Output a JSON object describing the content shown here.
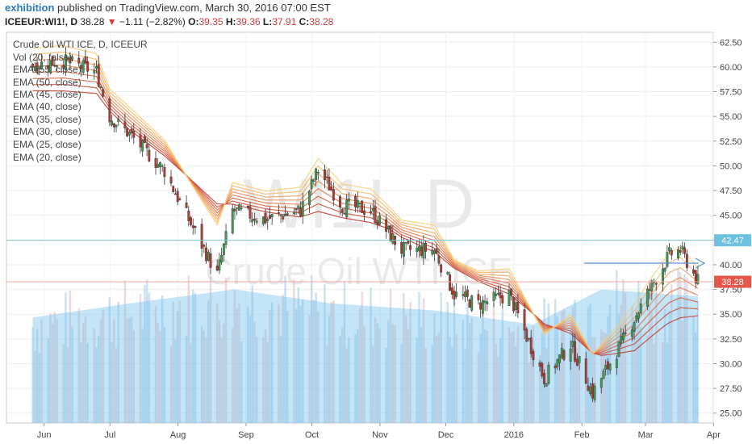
{
  "header": {
    "author": "exhibition",
    "published_text": " published on TradingView.com, March 30, 2016 07:00 EST",
    "symbol": "ICEEUR:WI1!",
    "interval": ", D ",
    "last": "38.28",
    "change": "−1.11 (−2.82%)",
    "o_label": "O:",
    "o_value": "39.35",
    "h_label": "H:",
    "h_value": "39.36",
    "l_label": "L:",
    "l_value": "37.91",
    "c_label": "C:",
    "c_value": "38.28",
    "down_color": "#d23b3b"
  },
  "watermark": {
    "line1": "WI1!, D",
    "line2": "Crude Oil WTI ICE"
  },
  "studies": {
    "title": "Crude Oil WTI ICE, D, ICEEUR",
    "items": [
      "Vol (20, false)",
      "EMA (55, close)",
      "EMA (50, close)",
      "EMA (45, close)",
      "EMA (40, close)",
      "EMA (35, close)",
      "EMA (30, close)",
      "EMA (25, close)",
      "EMA (20, close)"
    ]
  },
  "price_badges": {
    "last": "38.28",
    "marked_level": "42.47",
    "last_color": "#e8564a",
    "marked_color": "#6cc0e0"
  },
  "chart_data": {
    "type": "line",
    "price_axis": [
      "62.50",
      "60.00",
      "57.50",
      "55.00",
      "52.50",
      "50.00",
      "47.50",
      "45.00",
      "42.50",
      "40.00",
      "37.50",
      "35.00",
      "32.50",
      "30.00",
      "27.50",
      "25.00"
    ],
    "ylim": [
      24.0,
      63.5
    ],
    "time_axis": [
      "Jun",
      "Jul",
      "Aug",
      "Sep",
      "Oct",
      "Nov",
      "Dec",
      "2016",
      "Feb",
      "Mar",
      "Apr"
    ],
    "horizontal_level": 42.47,
    "last_price": 38.28,
    "grid": true,
    "price_path": [
      [
        "2015-06-01",
        60.2
      ],
      [
        "2015-06-15",
        60.6
      ],
      [
        "2015-06-30",
        59.5
      ],
      [
        "2015-07-06",
        55.0
      ],
      [
        "2015-07-15",
        53.2
      ],
      [
        "2015-07-31",
        49.5
      ],
      [
        "2015-08-10",
        45.0
      ],
      [
        "2015-08-24",
        39.0
      ],
      [
        "2015-08-31",
        45.5
      ],
      [
        "2015-09-15",
        44.6
      ],
      [
        "2015-10-01",
        45.5
      ],
      [
        "2015-10-09",
        49.6
      ],
      [
        "2015-10-20",
        46.0
      ],
      [
        "2015-11-02",
        45.5
      ],
      [
        "2015-11-16",
        41.5
      ],
      [
        "2015-12-01",
        41.5
      ],
      [
        "2015-12-10",
        37.0
      ],
      [
        "2015-12-21",
        36.0
      ],
      [
        "2016-01-04",
        37.0
      ],
      [
        "2016-01-20",
        28.5
      ],
      [
        "2016-02-01",
        32.0
      ],
      [
        "2016-02-11",
        27.0
      ],
      [
        "2016-02-24",
        32.0
      ],
      [
        "2016-03-08",
        37.5
      ],
      [
        "2016-03-17",
        41.0
      ],
      [
        "2016-03-22",
        41.5
      ],
      [
        "2016-03-30",
        38.28
      ]
    ],
    "ema_anchor_path": [
      [
        "2015-06-01",
        59.4
      ],
      [
        "2015-06-30",
        59.2
      ],
      [
        "2015-07-15",
        56.0
      ],
      [
        "2015-08-10",
        52.0
      ],
      [
        "2015-08-31",
        48.5
      ],
      [
        "2015-09-30",
        47.0
      ],
      [
        "2015-10-20",
        46.8
      ],
      [
        "2015-11-10",
        46.0
      ],
      [
        "2015-12-01",
        43.5
      ],
      [
        "2015-12-21",
        41.0
      ],
      [
        "2016-01-15",
        38.0
      ],
      [
        "2016-02-01",
        35.5
      ],
      [
        "2016-02-15",
        33.5
      ],
      [
        "2016-03-01",
        33.0
      ],
      [
        "2016-03-15",
        35.0
      ],
      [
        "2016-03-30",
        36.5
      ]
    ],
    "volume_level": [
      [
        "2015-06-01",
        0.3
      ],
      [
        "2015-07-15",
        0.34
      ],
      [
        "2015-09-01",
        0.38
      ],
      [
        "2015-10-15",
        0.34
      ],
      [
        "2015-12-01",
        0.32
      ],
      [
        "2016-01-15",
        0.28
      ],
      [
        "2016-02-15",
        0.38
      ],
      [
        "2016-03-30",
        0.36
      ]
    ],
    "ema_colors": [
      "#c0392b",
      "#cc4a33",
      "#d65e3c",
      "#e07447",
      "#e88a52",
      "#efa05c",
      "#f4b667",
      "#f7cb73"
    ]
  }
}
